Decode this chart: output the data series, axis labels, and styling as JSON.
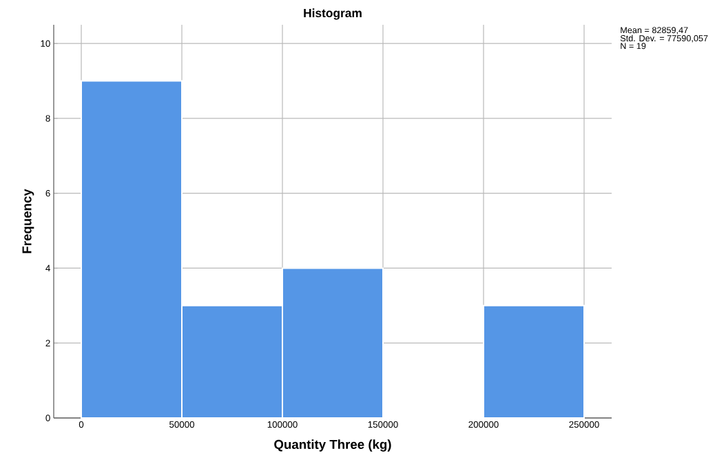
{
  "chart_data": {
    "type": "histogram",
    "title": "Histogram",
    "xlabel": "Quantity Three (kg)",
    "ylabel": "Frequency",
    "bins": [
      0,
      50000,
      100000,
      150000,
      200000,
      250000
    ],
    "values": [
      9,
      3,
      4,
      0,
      3
    ],
    "color": "#5596e6",
    "xlim": [
      -13700,
      263700
    ],
    "ylim": [
      0,
      10.5
    ],
    "xticks": [
      0,
      50000,
      100000,
      150000,
      200000,
      250000
    ],
    "yticks": [
      0,
      2,
      4,
      6,
      8,
      10
    ],
    "grid": true,
    "annotations": [
      "Mean = 82859,47",
      "Std. Dev. = 77590,057",
      "N = 19"
    ]
  }
}
